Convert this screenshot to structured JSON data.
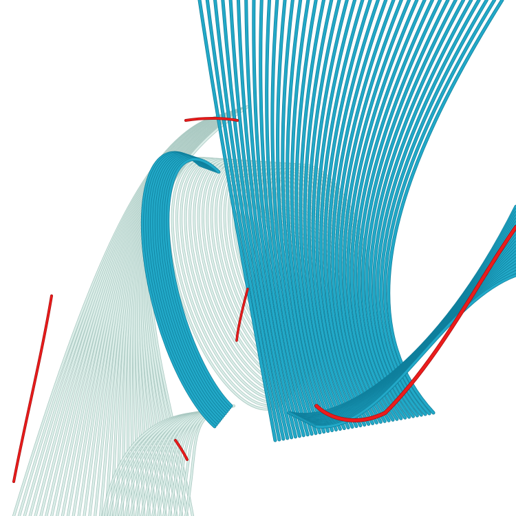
{
  "scene": {
    "subject": "streamline-tubes-render",
    "colors": {
      "background": "#ffffff",
      "pale": "#dceee9",
      "pale_shade": "#a9c8c1",
      "blue": "#22a9c8",
      "blue_shade": "#0f7f9c",
      "highlight": "#ec1c1c"
    }
  }
}
